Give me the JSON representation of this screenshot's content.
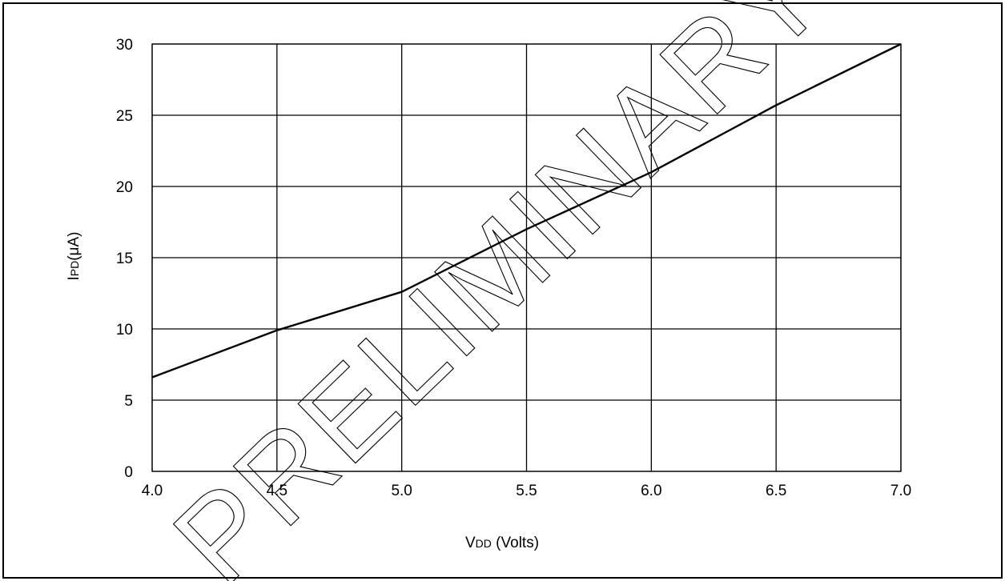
{
  "chart_data": {
    "type": "line",
    "title": "",
    "xlabel_main": "V",
    "xlabel_sub": "DD",
    "xlabel_rest": " (Volts)",
    "ylabel_main": "I",
    "ylabel_sub": "PD",
    "ylabel_rest": "(μA)",
    "xlim": [
      4.0,
      7.0
    ],
    "ylim": [
      0,
      30
    ],
    "x_ticks": [
      "4.0",
      "4.5",
      "5.0",
      "5.5",
      "6.0",
      "6.5",
      "7.0"
    ],
    "y_ticks": [
      "0",
      "5",
      "10",
      "15",
      "20",
      "25",
      "30"
    ],
    "grid": true,
    "series": [
      {
        "x": [
          4.0,
          4.5,
          5.0,
          5.5,
          6.0,
          6.5,
          7.0
        ],
        "y": [
          6.6,
          9.9,
          12.6,
          17.0,
          21.0,
          25.7,
          30.0
        ]
      }
    ],
    "watermark": "PRELIMINARY"
  }
}
